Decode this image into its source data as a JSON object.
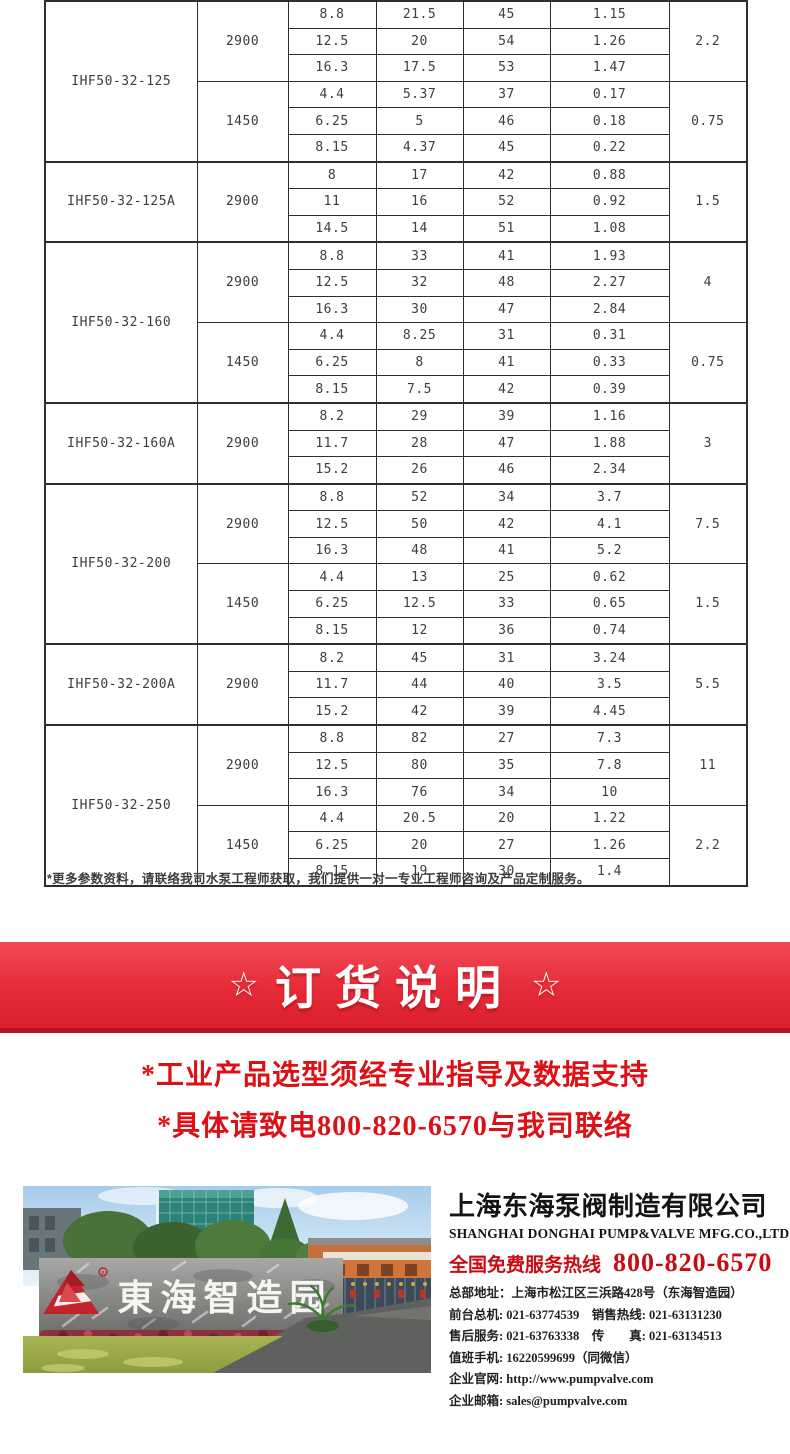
{
  "table": {
    "sections": [
      {
        "model": "IHF50-32-125",
        "groups": [
          {
            "speed": "2900",
            "motor": "2.2",
            "rows": [
              [
                "8.8",
                "21.5",
                "45",
                "1.15"
              ],
              [
                "12.5",
                "20",
                "54",
                "1.26"
              ],
              [
                "16.3",
                "17.5",
                "53",
                "1.47"
              ]
            ]
          },
          {
            "speed": "1450",
            "motor": "0.75",
            "rows": [
              [
                "4.4",
                "5.37",
                "37",
                "0.17"
              ],
              [
                "6.25",
                "5",
                "46",
                "0.18"
              ],
              [
                "8.15",
                "4.37",
                "45",
                "0.22"
              ]
            ]
          }
        ]
      },
      {
        "model": "IHF50-32-125A",
        "groups": [
          {
            "speed": "2900",
            "motor": "1.5",
            "rows": [
              [
                "8",
                "17",
                "42",
                "0.88"
              ],
              [
                "11",
                "16",
                "52",
                "0.92"
              ],
              [
                "14.5",
                "14",
                "51",
                "1.08"
              ]
            ]
          }
        ]
      },
      {
        "model": "IHF50-32-160",
        "groups": [
          {
            "speed": "2900",
            "motor": "4",
            "rows": [
              [
                "8.8",
                "33",
                "41",
                "1.93"
              ],
              [
                "12.5",
                "32",
                "48",
                "2.27"
              ],
              [
                "16.3",
                "30",
                "47",
                "2.84"
              ]
            ]
          },
          {
            "speed": "1450",
            "motor": "0.75",
            "rows": [
              [
                "4.4",
                "8.25",
                "31",
                "0.31"
              ],
              [
                "6.25",
                "8",
                "41",
                "0.33"
              ],
              [
                "8.15",
                "7.5",
                "42",
                "0.39"
              ]
            ]
          }
        ]
      },
      {
        "model": "IHF50-32-160A",
        "groups": [
          {
            "speed": "2900",
            "motor": "3",
            "rows": [
              [
                "8.2",
                "29",
                "39",
                "1.16"
              ],
              [
                "11.7",
                "28",
                "47",
                "1.88"
              ],
              [
                "15.2",
                "26",
                "46",
                "2.34"
              ]
            ]
          }
        ]
      },
      {
        "model": "IHF50-32-200",
        "groups": [
          {
            "speed": "2900",
            "motor": "7.5",
            "rows": [
              [
                "8.8",
                "52",
                "34",
                "3.7"
              ],
              [
                "12.5",
                "50",
                "42",
                "4.1"
              ],
              [
                "16.3",
                "48",
                "41",
                "5.2"
              ]
            ]
          },
          {
            "speed": "1450",
            "motor": "1.5",
            "rows": [
              [
                "4.4",
                "13",
                "25",
                "0.62"
              ],
              [
                "6.25",
                "12.5",
                "33",
                "0.65"
              ],
              [
                "8.15",
                "12",
                "36",
                "0.74"
              ]
            ]
          }
        ]
      },
      {
        "model": "IHF50-32-200A",
        "groups": [
          {
            "speed": "2900",
            "motor": "5.5",
            "rows": [
              [
                "8.2",
                "45",
                "31",
                "3.24"
              ],
              [
                "11.7",
                "44",
                "40",
                "3.5"
              ],
              [
                "15.2",
                "42",
                "39",
                "4.45"
              ]
            ]
          }
        ]
      },
      {
        "model": "IHF50-32-250",
        "groups": [
          {
            "speed": "2900",
            "motor": "11",
            "rows": [
              [
                "8.8",
                "82",
                "27",
                "7.3"
              ],
              [
                "12.5",
                "80",
                "35",
                "7.8"
              ],
              [
                "16.3",
                "76",
                "34",
                "10"
              ]
            ]
          },
          {
            "speed": "1450",
            "motor": "2.2",
            "rows": [
              [
                "4.4",
                "20.5",
                "20",
                "1.22"
              ],
              [
                "6.25",
                "20",
                "27",
                "1.26"
              ],
              [
                "8.15",
                "19",
                "30",
                "1.4"
              ]
            ]
          }
        ]
      }
    ]
  },
  "footnote": "*更多参数资料，请联络我司水泵工程师获取，我们提供一对一专业工程师咨询及产品定制服务。",
  "banner": {
    "star_left": "☆",
    "title": "订货说明",
    "star_right": "☆",
    "bg_color": "#e62b38",
    "bottom_edge_color": "#b5131f",
    "text_color": "#ffffff"
  },
  "notice": {
    "line1": "*工业产品选型须经专业指导及数据支持",
    "line2": "*具体请致电800-820-6570与我司联络",
    "color": "#dd1016"
  },
  "photo": {
    "sign_text": "東海智造园",
    "logo": "donghai-triangle-logo",
    "registered_mark": "®"
  },
  "company": {
    "name_cn": "上海东海泵阀制造有限公司",
    "name_en": "SHANGHAI DONGHAI PUMP&VALVE MFG.CO.,LTD.",
    "hotline_label": "全国免费服务热线",
    "hotline_number": "800-820-6570",
    "hotline_color": "#c90b11",
    "contact_lines": [
      "总部地址：上海市松江区三浜路428号（东海智造园）",
      "前台总机: 021-63774539　销售热线: 021-63131230",
      "售后服务: 021-63763338　传　　真: 021-63134513",
      "值班手机: 16220599699（同微信）",
      "企业官网: http://www.pumpvalve.com",
      "企业邮箱: sales@pumpvalve.com"
    ]
  }
}
